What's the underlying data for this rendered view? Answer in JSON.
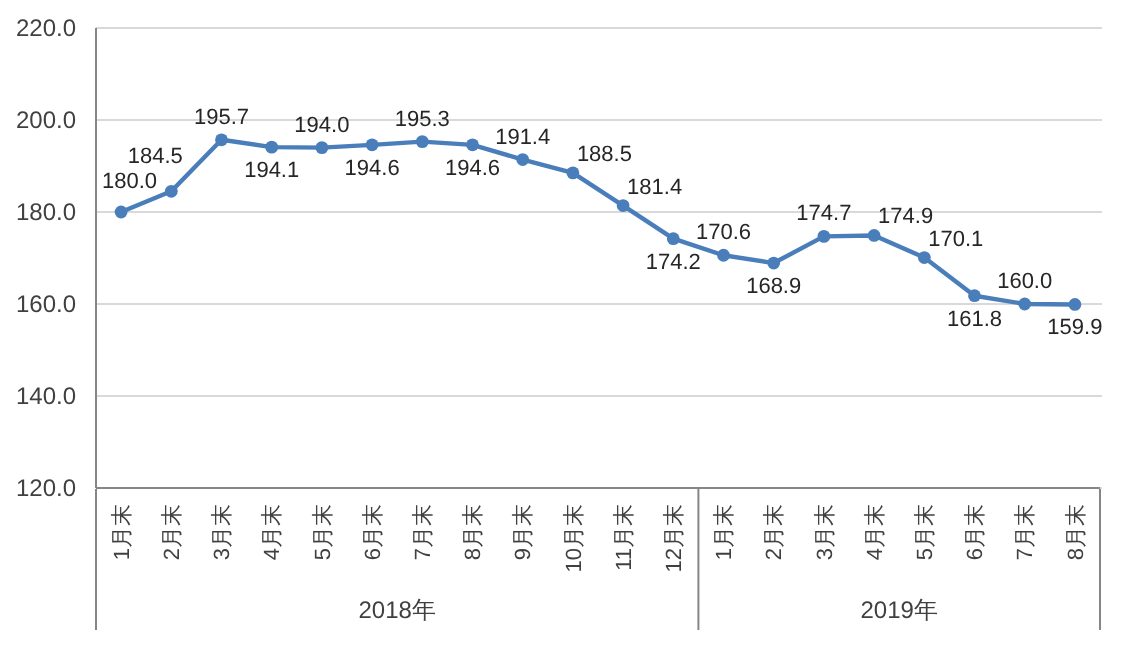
{
  "chart_data": {
    "type": "line",
    "categories": [
      "1月末",
      "2月末",
      "3月末",
      "4月末",
      "5月末",
      "6月末",
      "7月末",
      "8月末",
      "9月末",
      "10月末",
      "11月末",
      "12月末",
      "1月末",
      "2月末",
      "3月末",
      "4月末",
      "5月末",
      "6月末",
      "7月末",
      "8月末"
    ],
    "values": [
      180.0,
      184.5,
      195.7,
      194.1,
      194.0,
      194.6,
      195.3,
      194.6,
      191.4,
      188.5,
      181.4,
      174.2,
      170.6,
      168.9,
      174.7,
      174.9,
      170.1,
      161.8,
      160.0,
      159.9
    ],
    "value_labels": [
      "180.0",
      "184.5",
      "195.7",
      "194.1",
      "194.0",
      "194.6",
      "195.3",
      "194.6",
      "191.4",
      "188.5",
      "181.4",
      "174.2",
      "170.6",
      "168.9",
      "174.7",
      "174.9",
      "170.1",
      "161.8",
      "160.0",
      "159.9"
    ],
    "color": "#4a7ebb",
    "ylim": [
      120,
      220
    ],
    "yticks": [
      {
        "value": 120,
        "label": "120.0"
      },
      {
        "value": 140,
        "label": "140.0"
      },
      {
        "value": 160,
        "label": "160.0"
      },
      {
        "value": 180,
        "label": "180.0"
      },
      {
        "value": 200,
        "label": "200.0"
      },
      {
        "value": 220,
        "label": "220.0"
      }
    ],
    "grid": "y",
    "marker": "circle",
    "line_style": "solid",
    "annotations": [
      "2018年",
      "2019年"
    ]
  }
}
